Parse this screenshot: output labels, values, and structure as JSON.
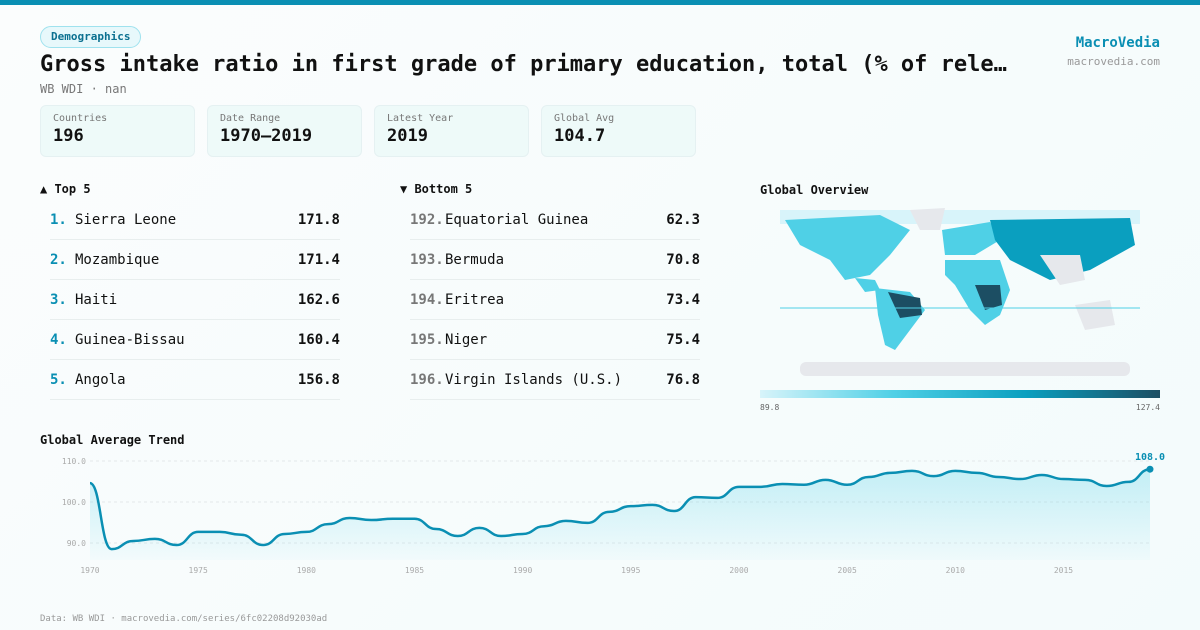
{
  "header": {
    "tag": "Demographics",
    "title": "Gross intake ratio in first grade of primary education, total (% of rele…",
    "subtitle": "WB WDI · nan",
    "brand": "MacroVedia",
    "brand_url": "macrovedia.com"
  },
  "stats": [
    {
      "label": "Countries",
      "value": "196"
    },
    {
      "label": "Date Range",
      "value": "1970–2019"
    },
    {
      "label": "Latest Year",
      "value": "2019"
    },
    {
      "label": "Global Avg",
      "value": "104.7"
    }
  ],
  "top5": {
    "title": "▲ Top 5",
    "items": [
      {
        "rank": "1.",
        "name": "Sierra Leone",
        "value": "171.8"
      },
      {
        "rank": "2.",
        "name": "Mozambique",
        "value": "171.4"
      },
      {
        "rank": "3.",
        "name": "Haiti",
        "value": "162.6"
      },
      {
        "rank": "4.",
        "name": "Guinea-Bissau",
        "value": "160.4"
      },
      {
        "rank": "5.",
        "name": "Angola",
        "value": "156.8"
      }
    ]
  },
  "bottom5": {
    "title": "▼ Bottom 5",
    "items": [
      {
        "rank": "192.",
        "name": "Equatorial Guinea",
        "value": "62.3"
      },
      {
        "rank": "193.",
        "name": "Bermuda",
        "value": "70.8"
      },
      {
        "rank": "194.",
        "name": "Eritrea",
        "value": "73.4"
      },
      {
        "rank": "195.",
        "name": "Niger",
        "value": "75.4"
      },
      {
        "rank": "196.",
        "name": "Virgin Islands (U.S.)",
        "value": "76.8"
      }
    ]
  },
  "map": {
    "title": "Global Overview",
    "scale_min": "89.8",
    "scale_max": "127.4",
    "colors": [
      "#d8f4fa",
      "#4fd0e6",
      "#0a9fbf",
      "#1c4e63"
    ]
  },
  "chart_data": {
    "type": "area",
    "title": "Global Average Trend",
    "x": [
      1970,
      1971,
      1972,
      1973,
      1974,
      1975,
      1976,
      1977,
      1978,
      1979,
      1980,
      1981,
      1982,
      1983,
      1984,
      1985,
      1986,
      1987,
      1988,
      1989,
      1990,
      1991,
      1992,
      1993,
      1994,
      1995,
      1996,
      1997,
      1998,
      1999,
      2000,
      2001,
      2002,
      2003,
      2004,
      2005,
      2006,
      2007,
      2008,
      2009,
      2010,
      2011,
      2012,
      2013,
      2014,
      2015,
      2016,
      2017,
      2018,
      2019
    ],
    "values": [
      104.6,
      88.5,
      90.5,
      91.0,
      89.5,
      92.7,
      92.7,
      92.0,
      89.5,
      92.2,
      92.7,
      94.6,
      96.1,
      95.6,
      95.9,
      95.9,
      93.4,
      91.7,
      93.7,
      91.7,
      92.2,
      94.1,
      95.4,
      94.9,
      97.6,
      99.0,
      99.3,
      97.8,
      101.2,
      101.0,
      103.7,
      103.7,
      104.4,
      104.2,
      105.4,
      104.2,
      106.1,
      107.1,
      107.6,
      106.3,
      107.6,
      107.1,
      106.1,
      105.6,
      106.6,
      105.6,
      105.4,
      103.9,
      104.9,
      108.0
    ],
    "yticks": [
      "90.0",
      "100.0",
      "110.0"
    ],
    "xticks": [
      "1970",
      "1975",
      "1980",
      "1985",
      "1990",
      "1995",
      "2000",
      "2005",
      "2010",
      "2015"
    ],
    "last_label": "108.0",
    "color": "#0a8fb3",
    "grid": true
  },
  "footer": "Data: WB WDI · macrovedia.com/series/6fc02208d92030ad"
}
